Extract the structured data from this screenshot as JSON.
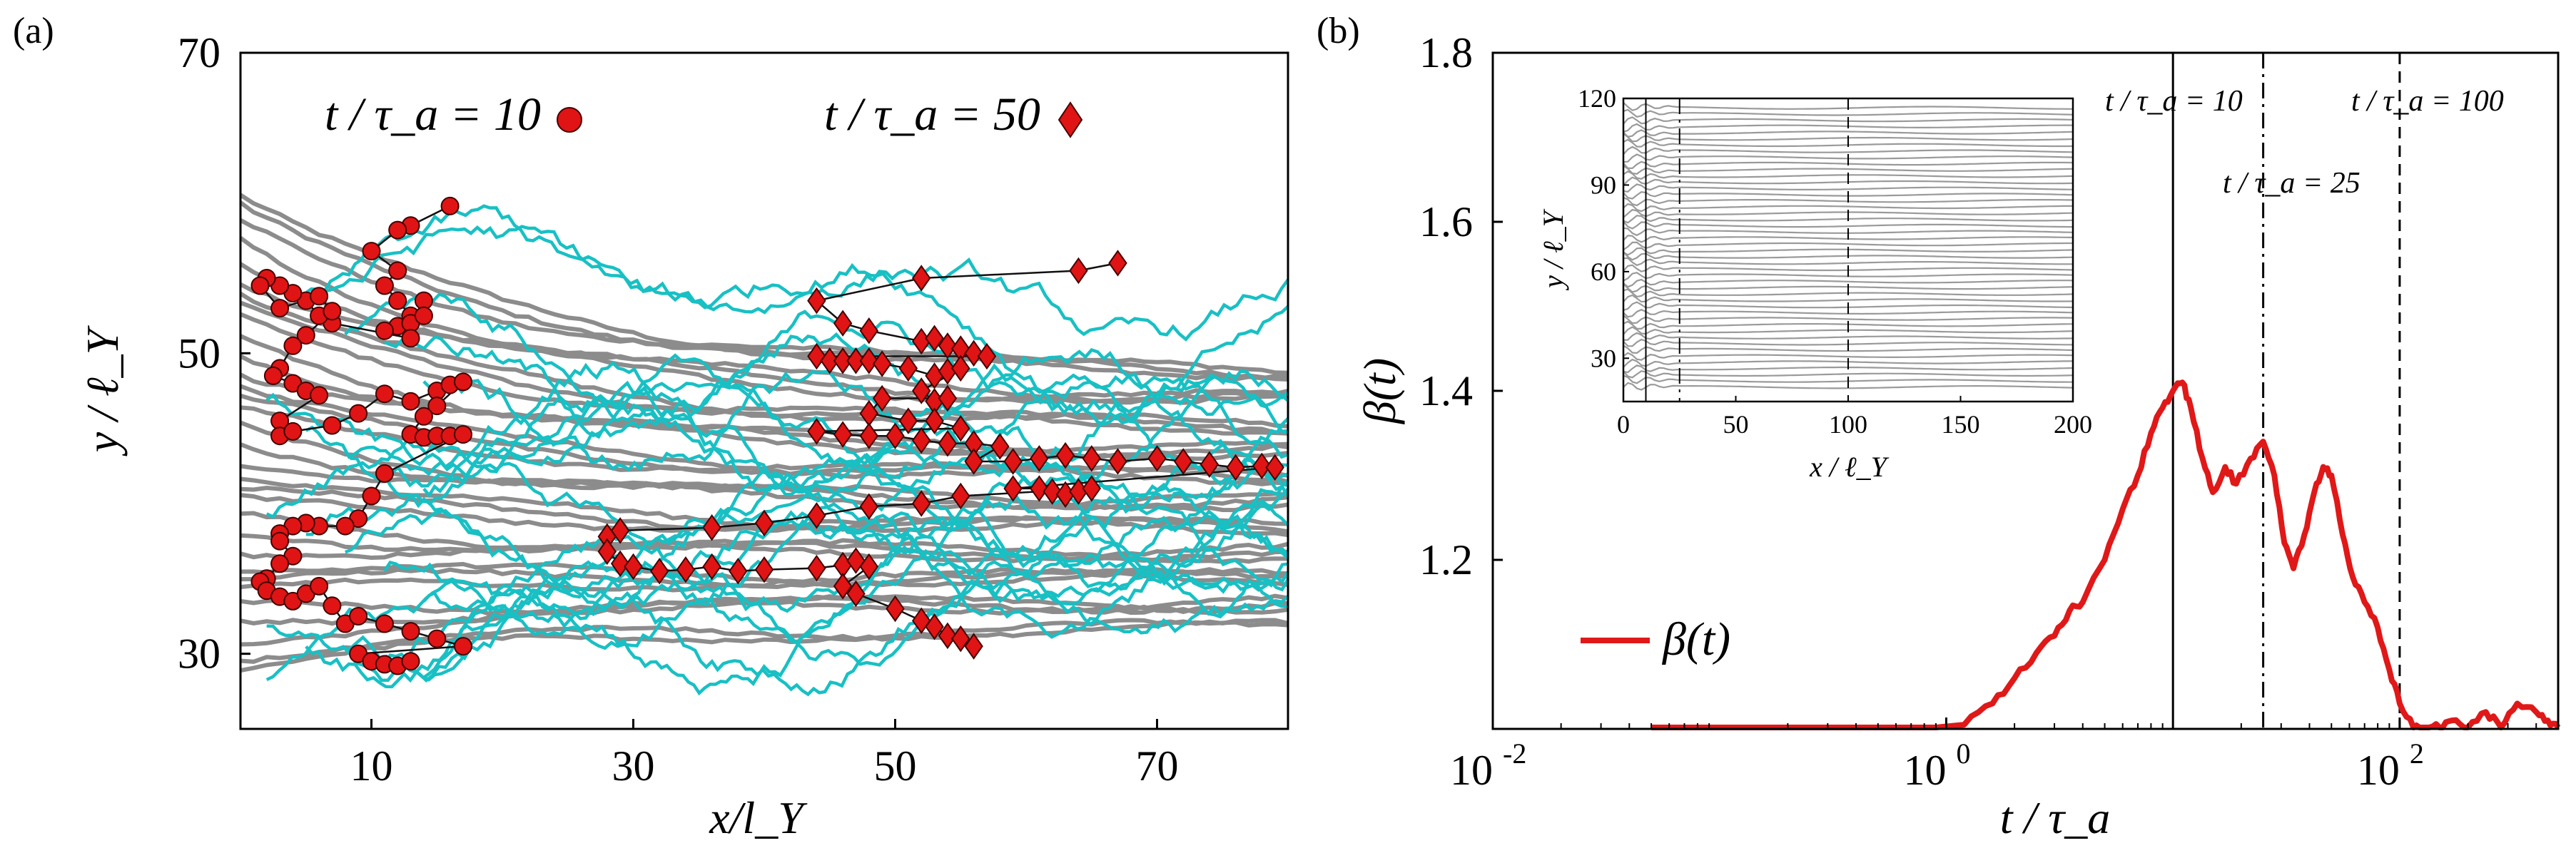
{
  "chart_data": [
    {
      "panel": "(a)",
      "type": "line",
      "xlabel": "x/l_Y",
      "ylabel": "y / ℓ_Y",
      "xlim": [
        0,
        80
      ],
      "ylim": [
        25,
        70
      ],
      "xticks": [
        10,
        30,
        50,
        70
      ],
      "yticks": [
        30,
        50,
        70
      ],
      "xtick_labels": [
        "10",
        "30",
        "50",
        "70"
      ],
      "ytick_labels": [
        "30",
        "50",
        "70"
      ],
      "legend": [
        {
          "label": "t / τ_a = 10",
          "marker": "circle",
          "color": "#e01414"
        },
        {
          "label": "t / τ_a = 50",
          "marker": "diamond",
          "color": "#e01414"
        }
      ],
      "series": [
        {
          "name": "streamlines",
          "color": "#8c8c8c"
        },
        {
          "name": "particle paths",
          "color": "#18c0c4"
        },
        {
          "name": "t/τa=10 positions",
          "marker": "circle",
          "points": [
            [
              16,
              59.8
            ],
            [
              13,
              58.5
            ],
            [
              12,
              58.2
            ],
            [
              10,
              56.8
            ],
            [
              12,
              55.5
            ],
            [
              11,
              54.5
            ],
            [
              12,
              53.5
            ],
            [
              13,
              52.5
            ],
            [
              12,
              51.8
            ],
            [
              11,
              51.5
            ],
            [
              13,
              52.0
            ],
            [
              14,
              53.5
            ],
            [
              14,
              52.5
            ],
            [
              13,
              51.0
            ],
            [
              7,
              52.0
            ],
            [
              6,
              52.5
            ],
            [
              5,
              53.5
            ],
            [
              4,
              54.0
            ],
            [
              3,
              54.5
            ],
            [
              2,
              55.0
            ],
            [
              1.5,
              54.5
            ],
            [
              3,
              53.0
            ],
            [
              6,
              53.8
            ],
            [
              7,
              52.8
            ],
            [
              5,
              51.2
            ],
            [
              4,
              50.5
            ],
            [
              3,
              49.0
            ],
            [
              2.5,
              48.5
            ],
            [
              4,
              48.0
            ],
            [
              5,
              47.5
            ],
            [
              6,
              47.2
            ],
            [
              3,
              45.5
            ],
            [
              3,
              44.5
            ],
            [
              4,
              44.8
            ],
            [
              7,
              45.2
            ],
            [
              9,
              46.0
            ],
            [
              11,
              47.3
            ],
            [
              13,
              46.8
            ],
            [
              15,
              47.5
            ],
            [
              16,
              47.9
            ],
            [
              17,
              48.1
            ],
            [
              15,
              46.5
            ],
            [
              14,
              45.8
            ],
            [
              13,
              44.6
            ],
            [
              14,
              44.4
            ],
            [
              15,
              44.5
            ],
            [
              16,
              44.5
            ],
            [
              17,
              44.6
            ],
            [
              11,
              42.0
            ],
            [
              10,
              40.5
            ],
            [
              9,
              39.0
            ],
            [
              8,
              38.5
            ],
            [
              6,
              38.5
            ],
            [
              5,
              38.7
            ],
            [
              4,
              38.5
            ],
            [
              3,
              38.0
            ],
            [
              3,
              37.5
            ],
            [
              4,
              36.5
            ],
            [
              3,
              36.0
            ],
            [
              2,
              35.0
            ],
            [
              1.5,
              34.8
            ],
            [
              2,
              34.2
            ],
            [
              3,
              33.8
            ],
            [
              4,
              33.5
            ],
            [
              5,
              34.0
            ],
            [
              6,
              34.5
            ],
            [
              7,
              33.2
            ],
            [
              8,
              32.0
            ],
            [
              9,
              32.5
            ],
            [
              11,
              32.0
            ],
            [
              13,
              31.5
            ],
            [
              15,
              31.0
            ],
            [
              17,
              30.5
            ],
            [
              9,
              30.0
            ],
            [
              10,
              29.5
            ],
            [
              11,
              29.3
            ],
            [
              12,
              29.2
            ],
            [
              13,
              29.5
            ]
          ]
        },
        {
          "name": "t/τa=50 positions",
          "marker": "diamond",
          "points": [
            [
              67,
              56.0
            ],
            [
              64,
              55.5
            ],
            [
              52,
              55.0
            ],
            [
              44,
              53.5
            ],
            [
              46,
              52.0
            ],
            [
              48,
              51.5
            ],
            [
              52,
              50.8
            ],
            [
              53,
              51.0
            ],
            [
              54,
              50.5
            ],
            [
              55,
              50.3
            ],
            [
              56,
              50.0
            ],
            [
              57,
              49.8
            ],
            [
              44,
              49.8
            ],
            [
              45,
              49.5
            ],
            [
              46,
              49.5
            ],
            [
              47,
              49.5
            ],
            [
              48,
              49.5
            ],
            [
              49,
              49.3
            ],
            [
              51,
              49.0
            ],
            [
              53,
              48.5
            ],
            [
              54,
              48.8
            ],
            [
              55,
              49.0
            ],
            [
              52,
              47.5
            ],
            [
              53,
              46.8
            ],
            [
              54,
              47.0
            ],
            [
              49,
              47.0
            ],
            [
              48,
              46.0
            ],
            [
              51,
              45.5
            ],
            [
              53,
              45.5
            ],
            [
              55,
              45.0
            ],
            [
              44,
              44.8
            ],
            [
              46,
              44.6
            ],
            [
              48,
              44.5
            ],
            [
              50,
              44.5
            ],
            [
              52,
              44.2
            ],
            [
              54,
              44.0
            ],
            [
              56,
              44.0
            ],
            [
              58,
              43.8
            ],
            [
              56,
              42.8
            ],
            [
              59,
              42.8
            ],
            [
              61,
              43.0
            ],
            [
              63,
              43.2
            ],
            [
              65,
              43.0
            ],
            [
              67,
              42.8
            ],
            [
              70,
              43.0
            ],
            [
              72,
              42.8
            ],
            [
              74,
              42.6
            ],
            [
              76,
              42.4
            ],
            [
              78,
              42.5
            ],
            [
              79,
              42.4
            ],
            [
              59,
              41.0
            ],
            [
              61,
              41.0
            ],
            [
              62,
              40.8
            ],
            [
              63,
              40.6
            ],
            [
              64,
              40.8
            ],
            [
              65,
              41.0
            ],
            [
              55,
              40.5
            ],
            [
              52,
              40.0
            ],
            [
              48,
              39.8
            ],
            [
              44,
              39.2
            ],
            [
              40,
              38.7
            ],
            [
              36,
              38.4
            ],
            [
              29,
              38.2
            ],
            [
              28,
              37.8
            ],
            [
              28,
              36.8
            ],
            [
              29,
              36.0
            ],
            [
              30,
              35.8
            ],
            [
              32,
              35.5
            ],
            [
              34,
              35.6
            ],
            [
              36,
              35.8
            ],
            [
              38,
              35.5
            ],
            [
              40,
              35.6
            ],
            [
              44,
              35.7
            ],
            [
              46,
              35.9
            ],
            [
              47,
              36.2
            ],
            [
              48,
              35.8
            ],
            [
              46,
              34.5
            ],
            [
              47,
              34.0
            ],
            [
              50,
              33.0
            ],
            [
              52,
              32.2
            ],
            [
              53,
              31.8
            ],
            [
              54,
              31.2
            ],
            [
              55,
              31.0
            ],
            [
              56,
              30.5
            ]
          ]
        }
      ]
    },
    {
      "panel": "(b)",
      "type": "line",
      "xscale": "log",
      "xlabel": "t / τ_a",
      "ylabel": "β(t)",
      "xlim": [
        0.01,
        500
      ],
      "ylim": [
        1.0,
        1.8
      ],
      "yticks": [
        1.2,
        1.4,
        1.6,
        1.8
      ],
      "ytick_labels": [
        "1.2",
        "1.4",
        "1.6",
        "1.8"
      ],
      "xticks": [
        0.01,
        1,
        100
      ],
      "xtick_labels": [
        "10",
        "10",
        "10"
      ],
      "xtick_exponents": [
        "-2",
        "0",
        "2"
      ],
      "legend": [
        {
          "label": "β(t)",
          "color": "#e01818"
        }
      ],
      "vertical_lines": [
        {
          "x": 10,
          "style": "solid",
          "label": "t / τ_a = 10"
        },
        {
          "x": 25,
          "style": "dashdot",
          "label": "t / τ_a = 25"
        },
        {
          "x": 100,
          "style": "dashed",
          "label": "t / τ_a = 100"
        }
      ],
      "series": [
        {
          "name": "β(t)",
          "color": "#e01818",
          "x": [
            0.05,
            0.1,
            0.3,
            0.6,
            0.9,
            1.2,
            1.6,
            2.0,
            2.5,
            3.0,
            3.5,
            4.0,
            5.0,
            6.0,
            7.0,
            8.0,
            9.0,
            10.0,
            11.0,
            12.0,
            13.5,
            15.0,
            17.0,
            19.0,
            22.0,
            25.0,
            28.0,
            31.0,
            34.0,
            38.0,
            42.0,
            46.0,
            50.0,
            56.0,
            62.0,
            70.0,
            80.0,
            90.0,
            100.0,
            115.0,
            130.0,
            150.0,
            170.0,
            200.0,
            240.0,
            280.0,
            330.0,
            400.0,
            450.0,
            500.0
          ],
          "y": [
            1.0,
            1.0,
            1.0,
            1.0,
            0.998,
            1.005,
            1.03,
            1.06,
            1.09,
            1.11,
            1.14,
            1.15,
            1.2,
            1.26,
            1.3,
            1.35,
            1.38,
            1.4,
            1.41,
            1.38,
            1.32,
            1.28,
            1.31,
            1.29,
            1.32,
            1.34,
            1.3,
            1.22,
            1.19,
            1.23,
            1.28,
            1.31,
            1.3,
            1.23,
            1.18,
            1.15,
            1.12,
            1.07,
            1.03,
            1.0,
            0.99,
            1.0,
            1.01,
            1.0,
            1.02,
            1.0,
            1.03,
            1.02,
            1.01,
            1.0
          ]
        }
      ],
      "inset": {
        "xlabel": "x / ℓ_Y",
        "ylabel": "y / ℓ_Y",
        "xlim": [
          0,
          200
        ],
        "ylim": [
          15,
          120
        ],
        "xticks": [
          0,
          50,
          100,
          150,
          200
        ],
        "yticks": [
          30,
          60,
          90,
          120
        ],
        "xtick_labels": [
          "0",
          "50",
          "100",
          "150",
          "200"
        ],
        "ytick_labels": [
          "30",
          "60",
          "90",
          "120"
        ],
        "vertical_lines": [
          {
            "x": 10,
            "style": "solid"
          },
          {
            "x": 25,
            "style": "dashdot"
          },
          {
            "x": 100,
            "style": "dashed"
          }
        ]
      }
    }
  ]
}
